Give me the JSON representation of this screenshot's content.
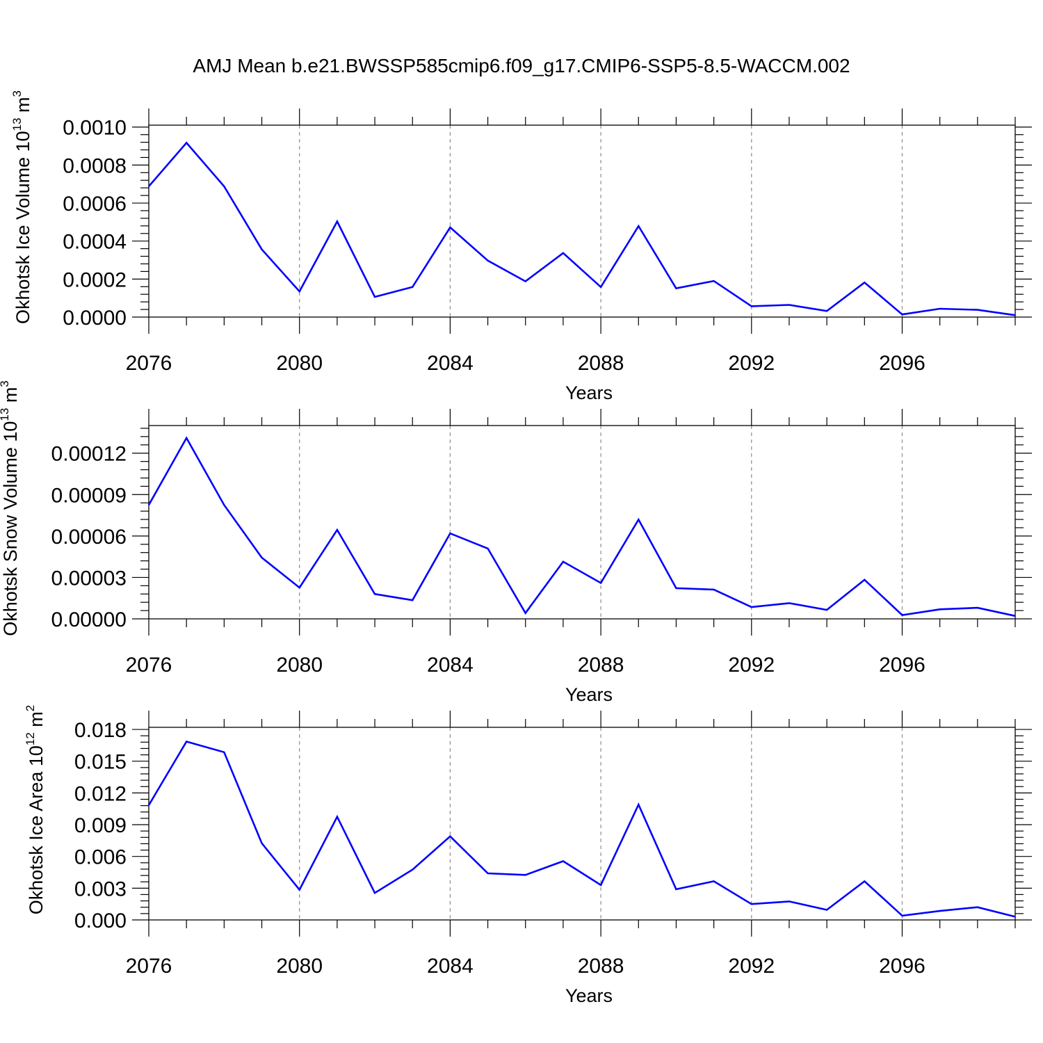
{
  "figure": {
    "title": "AMJ Mean b.e21.BWSSP585cmip6.f09_g17.CMIP6-SSP5-8.5-WACCM.002"
  },
  "colors": {
    "series": "#0000ff",
    "axis": "#000000",
    "grid": "#8c8c8c",
    "background": "#ffffff"
  },
  "chart_data": [
    {
      "type": "line",
      "title": "",
      "xlabel": "Years",
      "ylabel_main": "Okhotsk Ice Volume 10",
      "ylabel_exp": "13",
      "ylabel_unit": " m",
      "ylabel_unit_exp": "3",
      "xlim": [
        2076,
        2099
      ],
      "ylim": [
        0,
        0.00101
      ],
      "xticks": [
        "2076",
        "2080",
        "2084",
        "2088",
        "2092",
        "2096"
      ],
      "yticks": [
        "0.0000",
        "0.0002",
        "0.0004",
        "0.0006",
        "0.0008",
        "0.0010"
      ],
      "ytick_values": [
        0,
        0.0002,
        0.0004,
        0.0006,
        0.0008,
        0.001
      ],
      "grid": "vertical dashed at major x ticks",
      "x": [
        2076,
        2077,
        2078,
        2079,
        2080,
        2081,
        2082,
        2083,
        2084,
        2085,
        2086,
        2087,
        2088,
        2089,
        2090,
        2091,
        2092,
        2093,
        2094,
        2095,
        2096,
        2097,
        2098,
        2099
      ],
      "series": [
        {
          "name": "Okhotsk Ice Volume",
          "values": [
            0.000688,
            0.000917,
            0.000688,
            0.000356,
            0.000135,
            0.000503,
            0.000106,
            0.000158,
            0.000472,
            0.000297,
            0.000188,
            0.000337,
            0.000158,
            0.000479,
            0.000151,
            0.00019,
            5.7e-05,
            6.4e-05,
            3.2e-05,
            0.000182,
            1.4e-05,
            4.4e-05,
            3.8e-05,
            1e-05
          ]
        }
      ]
    },
    {
      "type": "line",
      "title": "",
      "xlabel": "Years",
      "ylabel_main": "Okhotsk Snow Volume 10",
      "ylabel_exp": "13",
      "ylabel_unit": " m",
      "ylabel_unit_exp": "3",
      "xlim": [
        2076,
        2099
      ],
      "ylim": [
        0,
        0.00014
      ],
      "xticks": [
        "2076",
        "2080",
        "2084",
        "2088",
        "2092",
        "2096"
      ],
      "yticks": [
        "0.00000",
        "0.00003",
        "0.00006",
        "0.00009",
        "0.00012"
      ],
      "ytick_values": [
        0,
        3e-05,
        6e-05,
        9e-05,
        0.00012
      ],
      "grid": "vertical dashed at major x ticks",
      "x": [
        2076,
        2077,
        2078,
        2079,
        2080,
        2081,
        2082,
        2083,
        2084,
        2085,
        2086,
        2087,
        2088,
        2089,
        2090,
        2091,
        2092,
        2093,
        2094,
        2095,
        2096,
        2097,
        2098,
        2099
      ],
      "series": [
        {
          "name": "Okhotsk Snow Volume",
          "values": [
            8.25e-05,
            0.000131,
            8.25e-05,
            4.43e-05,
            2.26e-05,
            6.44e-05,
            1.8e-05,
            1.35e-05,
            6.19e-05,
            5.09e-05,
            4.2e-06,
            4.14e-05,
            2.6e-05,
            7.19e-05,
            2.22e-05,
            2.12e-05,
            8.5e-06,
            1.14e-05,
            6.5e-06,
            2.83e-05,
            2.7e-06,
            6.9e-06,
            8e-06,
            2.1e-06
          ]
        }
      ]
    },
    {
      "type": "line",
      "title": "",
      "xlabel": "Years",
      "ylabel_main": "Okhotsk Ice Area 10",
      "ylabel_exp": "12",
      "ylabel_unit": " m",
      "ylabel_unit_exp": "2",
      "xlim": [
        2076,
        2099
      ],
      "ylim": [
        0,
        0.0182
      ],
      "xticks": [
        "2076",
        "2080",
        "2084",
        "2088",
        "2092",
        "2096"
      ],
      "yticks": [
        "0.000",
        "0.003",
        "0.006",
        "0.009",
        "0.012",
        "0.015",
        "0.018"
      ],
      "ytick_values": [
        0,
        0.003,
        0.006,
        0.009,
        0.012,
        0.015,
        0.018
      ],
      "grid": "vertical dashed at major x ticks",
      "x": [
        2076,
        2077,
        2078,
        2079,
        2080,
        2081,
        2082,
        2083,
        2084,
        2085,
        2086,
        2087,
        2088,
        2089,
        2090,
        2091,
        2092,
        2093,
        2094,
        2095,
        2096,
        2097,
        2098,
        2099
      ],
      "series": [
        {
          "name": "Okhotsk Ice Area",
          "values": [
            0.01085,
            0.01685,
            0.01585,
            0.00725,
            0.00285,
            0.00975,
            0.00255,
            0.00475,
            0.0079,
            0.0044,
            0.00425,
            0.00555,
            0.0033,
            0.0109,
            0.0029,
            0.00365,
            0.0015,
            0.00175,
            0.00095,
            0.00365,
            0.0004,
            0.00085,
            0.0012,
            0.0003
          ]
        }
      ]
    }
  ]
}
